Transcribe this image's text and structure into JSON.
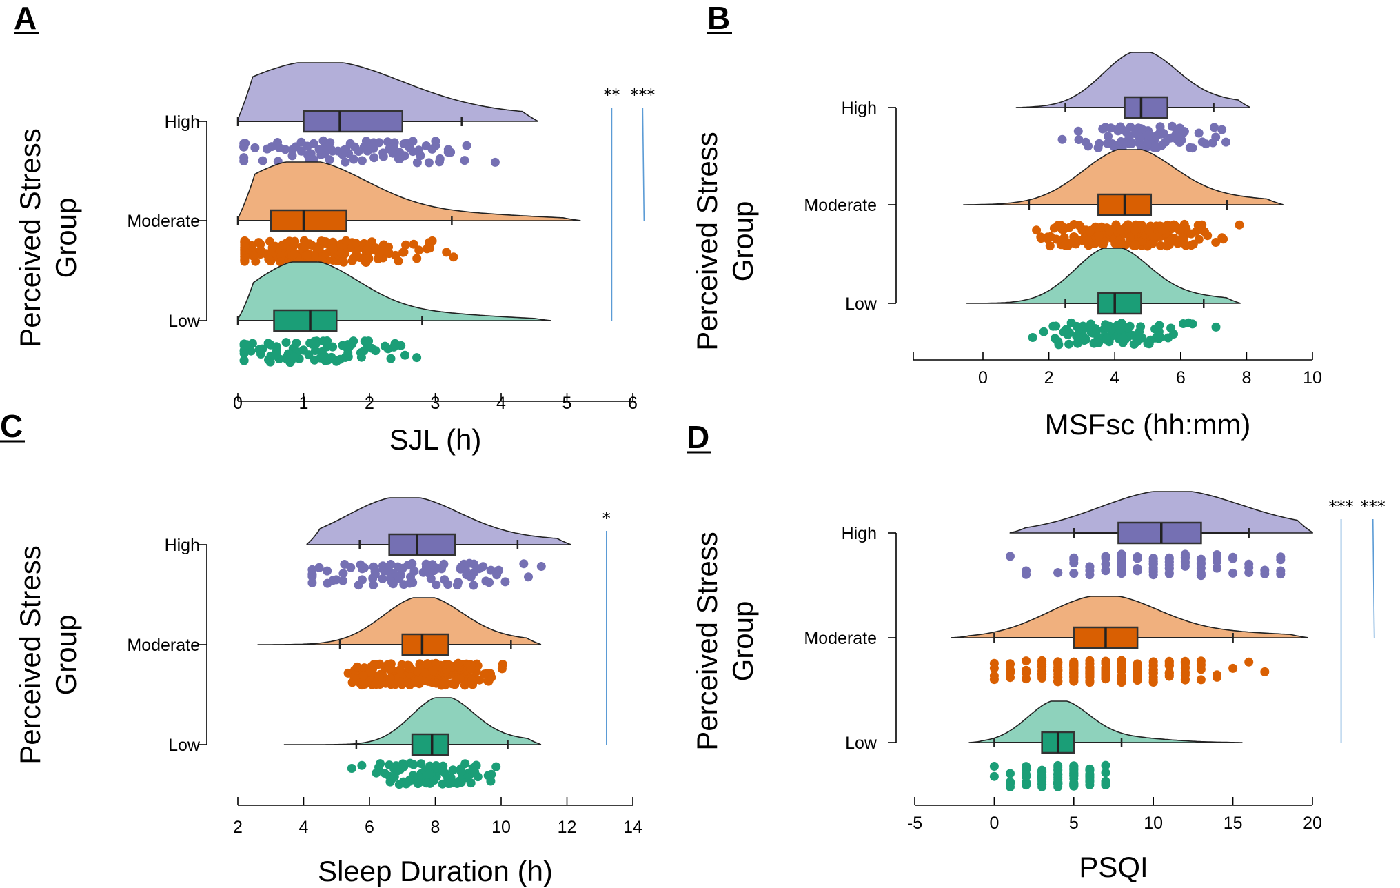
{
  "colors": {
    "High": {
      "fill": "#b3afd9",
      "box": "#7570b3",
      "dot": "#7570b3"
    },
    "Moderate": {
      "fill": "#f0b07e",
      "box": "#d95f02",
      "dot": "#d95f02"
    },
    "Low": {
      "fill": "#8ed2bc",
      "box": "#1b9e77",
      "dot": "#1b9e77"
    },
    "significance_line": "#5b9bd5"
  },
  "chart_data": [
    {
      "panel": "A",
      "type": "raincloud",
      "xlabel": "SJL (h)",
      "ylabel": [
        "Perceived Stress",
        "Group"
      ],
      "categories": [
        "High",
        "Moderate",
        "Low"
      ],
      "xlim": [
        -0.1,
        6.2
      ],
      "xticks": [
        0,
        1,
        2,
        3,
        4,
        5,
        6
      ],
      "series": [
        {
          "name": "High",
          "whisker": [
            0,
            3.4
          ],
          "q1": 1.0,
          "median": 1.55,
          "q3": 2.5,
          "density_range": [
            0,
            4.55
          ],
          "peak": 1.2
        },
        {
          "name": "Moderate",
          "whisker": [
            0,
            3.25
          ],
          "q1": 0.5,
          "median": 1.0,
          "q3": 1.65,
          "density_range": [
            0,
            5.2
          ],
          "peak": 0.95
        },
        {
          "name": "Low",
          "whisker": [
            0,
            2.8
          ],
          "q1": 0.55,
          "median": 1.1,
          "q3": 1.5,
          "density_range": [
            0,
            4.75
          ],
          "peak": 1.0
        }
      ],
      "significance": [
        {
          "label": "**",
          "x": 5.68,
          "from": "High",
          "to": "Low"
        },
        {
          "label": "***",
          "x": 6.15,
          "from": "High",
          "to": "Moderate"
        }
      ]
    },
    {
      "panel": "B",
      "type": "raincloud",
      "xlabel": "MSFsc (hh:mm)",
      "ylabel": [
        "Perceived Stress",
        "Group"
      ],
      "categories": [
        "High",
        "Moderate",
        "Low"
      ],
      "xlim": [
        -2,
        10
      ],
      "xticks": [
        0,
        2,
        4,
        6,
        8,
        10
      ],
      "series": [
        {
          "name": "High",
          "whisker": [
            2.5,
            7.0
          ],
          "q1": 4.3,
          "median": 4.8,
          "q3": 5.6,
          "density_range": [
            1.0,
            8.1
          ],
          "peak": 4.75
        },
        {
          "name": "Moderate",
          "whisker": [
            1.4,
            7.4
          ],
          "q1": 3.5,
          "median": 4.3,
          "q3": 5.1,
          "density_range": [
            -0.6,
            9.1
          ],
          "peak": 4.4
        },
        {
          "name": "Low",
          "whisker": [
            2.5,
            6.7
          ],
          "q1": 3.5,
          "median": 4.0,
          "q3": 4.8,
          "density_range": [
            -0.5,
            7.8
          ],
          "peak": 3.9
        }
      ],
      "significance": []
    },
    {
      "panel": "C",
      "type": "raincloud",
      "xlabel": "Sleep Duration (h)",
      "ylabel": [
        "Perceived Stress",
        "Group"
      ],
      "categories": [
        "High",
        "Moderate",
        "Low"
      ],
      "xlim": [
        1.9,
        14.1
      ],
      "xticks": [
        2,
        4,
        6,
        8,
        10,
        12,
        14
      ],
      "series": [
        {
          "name": "High",
          "whisker": [
            5.7,
            10.5
          ],
          "q1": 6.6,
          "median": 7.45,
          "q3": 8.6,
          "density_range": [
            4.1,
            12.1
          ],
          "peak": 7.0
        },
        {
          "name": "Moderate",
          "whisker": [
            5.1,
            10.3
          ],
          "q1": 7.0,
          "median": 7.6,
          "q3": 8.4,
          "density_range": [
            2.6,
            11.2
          ],
          "peak": 7.6
        },
        {
          "name": "Low",
          "whisker": [
            5.6,
            10.2
          ],
          "q1": 7.3,
          "median": 7.9,
          "q3": 8.4,
          "density_range": [
            3.4,
            11.2
          ],
          "peak": 8.2
        }
      ],
      "significance": [
        {
          "label": "*",
          "x": 13.2,
          "from": "High",
          "to": "Low"
        }
      ]
    },
    {
      "panel": "D",
      "type": "raincloud",
      "xlabel": "PSQI",
      "ylabel": [
        "Perceived Stress",
        "Group"
      ],
      "categories": [
        "High",
        "Moderate",
        "Low"
      ],
      "xlim": [
        -5.2,
        20.2
      ],
      "xticks": [
        -5,
        0,
        5,
        10,
        15,
        20
      ],
      "series": [
        {
          "name": "High",
          "whisker": [
            5,
            16
          ],
          "q1": 7.8,
          "median": 10.5,
          "q3": 13,
          "density_range": [
            1,
            20
          ],
          "peak": 11
        },
        {
          "name": "Moderate",
          "whisker": [
            0,
            15
          ],
          "q1": 5,
          "median": 7,
          "q3": 9,
          "density_range": [
            -2.7,
            19.7
          ],
          "peak": 6.8
        },
        {
          "name": "Low",
          "whisker": [
            0,
            8
          ],
          "q1": 3,
          "median": 4,
          "q3": 5,
          "density_range": [
            -1.6,
            15.6
          ],
          "peak": 4
        }
      ],
      "significance": [
        {
          "label": "***",
          "x": 21.8,
          "from": "High",
          "to": "Low"
        },
        {
          "label": "***",
          "x": 23.8,
          "from": "High",
          "to": "Moderate"
        }
      ]
    }
  ]
}
